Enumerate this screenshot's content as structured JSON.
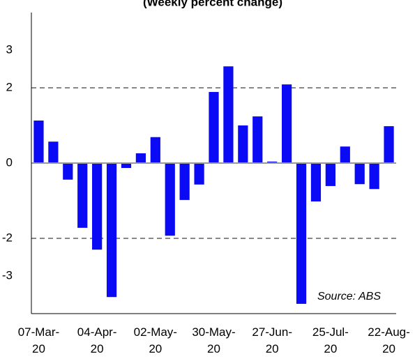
{
  "chart_data": {
    "type": "bar",
    "title": "(Weekly percent change)",
    "categories": [
      "07-Mar-20",
      null,
      null,
      null,
      "04-Apr-20",
      null,
      null,
      null,
      "02-May-20",
      null,
      null,
      null,
      "30-May-20",
      null,
      null,
      null,
      "27-Jun-20",
      null,
      null,
      null,
      "25-Jul-20",
      null,
      null,
      null,
      "22-Aug-20"
    ],
    "values": [
      1.13,
      0.57,
      -0.44,
      -1.72,
      -2.3,
      -3.56,
      -0.13,
      0.26,
      0.69,
      -1.93,
      -0.98,
      -0.57,
      1.89,
      2.57,
      1.0,
      1.24,
      0.04,
      2.09,
      -3.74,
      -1.02,
      -0.61,
      0.44,
      -0.56,
      -0.69,
      0.98
    ],
    "color": "#0a0af5",
    "ylim": [
      -4,
      4
    ],
    "yticks": [
      -3,
      -2,
      0,
      2,
      3
    ],
    "grid": true,
    "annotation": "Source: ABS"
  }
}
